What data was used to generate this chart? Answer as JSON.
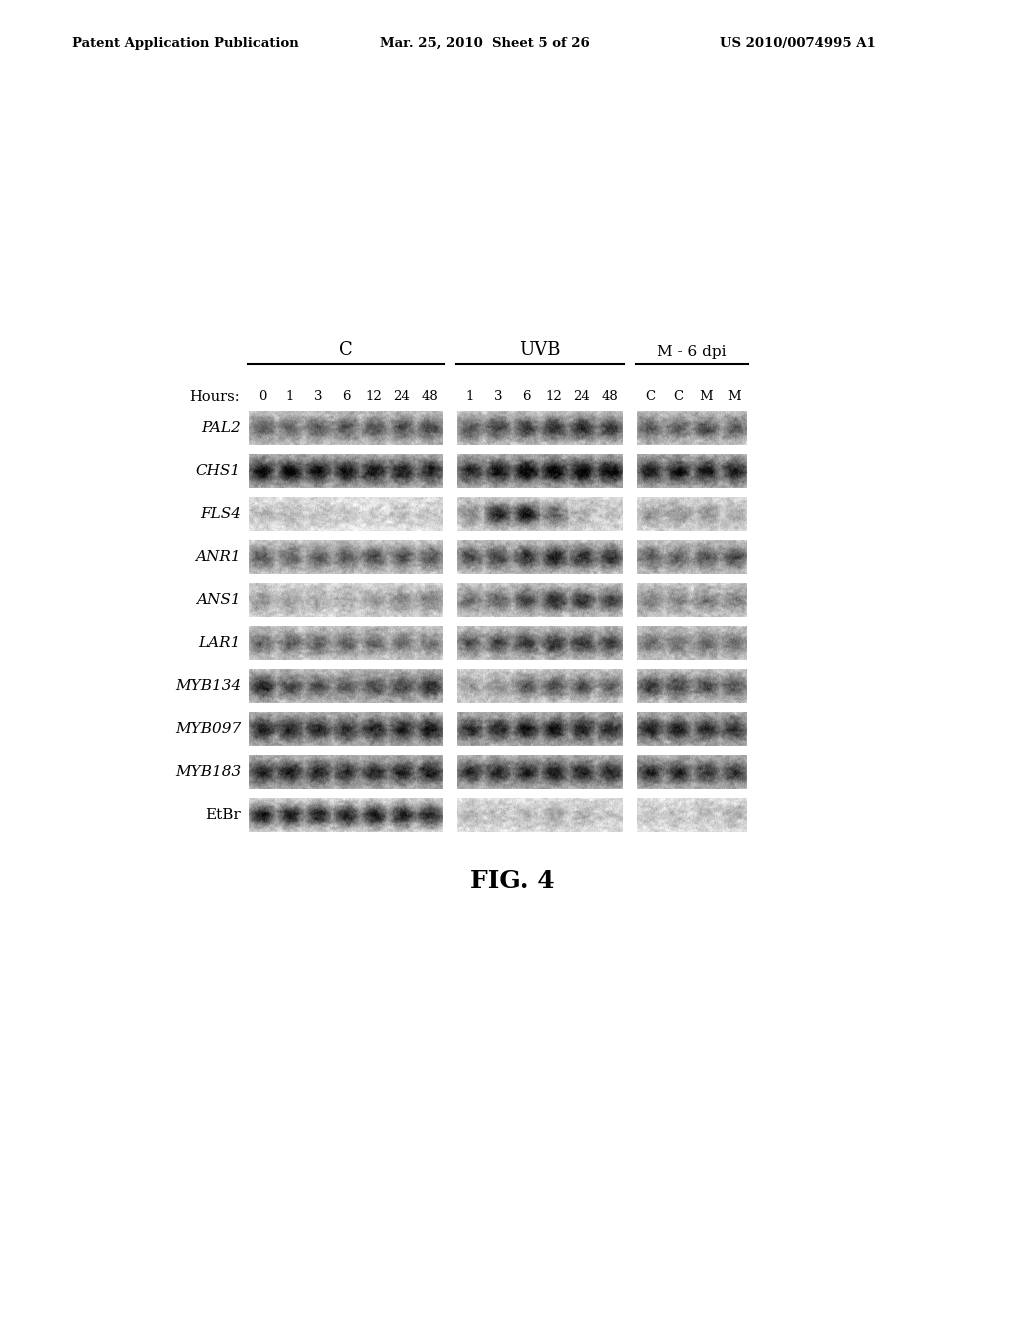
{
  "title_left": "Patent Application Publication",
  "title_center": "Mar. 25, 2010  Sheet 5 of 26",
  "title_right": "US 2010/0074995 A1",
  "fig_label": "FIG. 4",
  "group_labels": [
    "C",
    "UVB",
    "M - 6 dpi"
  ],
  "hours_label": "Hours:",
  "hours_C": [
    "0",
    "1",
    "3",
    "6",
    "12",
    "24",
    "48"
  ],
  "hours_UVB": [
    "1",
    "3",
    "6",
    "12",
    "24",
    "48"
  ],
  "hours_M": [
    "C",
    "C",
    "M",
    "M"
  ],
  "gene_labels": [
    "PAL2",
    "CHS1",
    "FLS4",
    "ANR1",
    "ANS1",
    "LAR1",
    "MYB134",
    "MYB097",
    "MYB183",
    "EtBr"
  ],
  "n_lanes_C": 7,
  "n_lanes_UVB": 6,
  "n_lanes_M": 4,
  "background_color": "#ffffff",
  "gene_data": {
    "PAL2": {
      "C": [
        0.5,
        0.45,
        0.48,
        0.52,
        0.55,
        0.58,
        0.6
      ],
      "UVB": [
        0.55,
        0.62,
        0.68,
        0.72,
        0.75,
        0.7
      ],
      "M": [
        0.52,
        0.5,
        0.55,
        0.52
      ],
      "bg_C": 0.78,
      "bg_UVB": 0.78,
      "bg_M": 0.78
    },
    "CHS1": {
      "C": [
        0.82,
        0.85,
        0.83,
        0.8,
        0.78,
        0.75,
        0.72
      ],
      "UVB": [
        0.7,
        0.78,
        0.88,
        0.92,
        0.9,
        0.88
      ],
      "M": [
        0.78,
        0.8,
        0.75,
        0.73
      ],
      "bg_C": 0.72,
      "bg_UVB": 0.72,
      "bg_M": 0.72
    },
    "FLS4": {
      "C": [
        0.22,
        0.2,
        0.18,
        0.1,
        0.08,
        0.12,
        0.15
      ],
      "UVB": [
        0.35,
        0.88,
        0.92,
        0.55,
        0.22,
        0.12
      ],
      "M": [
        0.3,
        0.35,
        0.28,
        0.22
      ],
      "bg_C": 0.88,
      "bg_UVB": 0.85,
      "bg_M": 0.85
    },
    "ANR1": {
      "C": [
        0.55,
        0.52,
        0.55,
        0.58,
        0.6,
        0.58,
        0.55
      ],
      "UVB": [
        0.58,
        0.62,
        0.72,
        0.78,
        0.75,
        0.7
      ],
      "M": [
        0.52,
        0.5,
        0.55,
        0.58
      ],
      "bg_C": 0.8,
      "bg_UVB": 0.78,
      "bg_M": 0.78
    },
    "ANS1": {
      "C": [
        0.28,
        0.25,
        0.22,
        0.2,
        0.25,
        0.38,
        0.42
      ],
      "UVB": [
        0.42,
        0.5,
        0.65,
        0.75,
        0.72,
        0.65
      ],
      "M": [
        0.38,
        0.35,
        0.4,
        0.38
      ],
      "bg_C": 0.83,
      "bg_UVB": 0.8,
      "bg_M": 0.8
    },
    "LAR1": {
      "C": [
        0.48,
        0.5,
        0.52,
        0.5,
        0.48,
        0.45,
        0.42
      ],
      "UVB": [
        0.52,
        0.58,
        0.68,
        0.72,
        0.7,
        0.65
      ],
      "M": [
        0.42,
        0.4,
        0.45,
        0.43
      ],
      "bg_C": 0.8,
      "bg_UVB": 0.78,
      "bg_M": 0.78
    },
    "MYB134": {
      "C": [
        0.72,
        0.55,
        0.52,
        0.5,
        0.55,
        0.6,
        0.68
      ],
      "UVB": [
        0.25,
        0.3,
        0.55,
        0.65,
        0.6,
        0.55
      ],
      "M": [
        0.65,
        0.62,
        0.6,
        0.58
      ],
      "bg_C": 0.75,
      "bg_UVB": 0.82,
      "bg_M": 0.78
    },
    "MYB097": {
      "C": [
        0.72,
        0.75,
        0.7,
        0.68,
        0.72,
        0.75,
        0.78
      ],
      "UVB": [
        0.68,
        0.7,
        0.75,
        0.78,
        0.72,
        0.7
      ],
      "M": [
        0.72,
        0.7,
        0.68,
        0.65
      ],
      "bg_C": 0.72,
      "bg_UVB": 0.72,
      "bg_M": 0.72
    },
    "MYB183": {
      "C": [
        0.7,
        0.72,
        0.68,
        0.65,
        0.7,
        0.72,
        0.75
      ],
      "UVB": [
        0.65,
        0.68,
        0.72,
        0.75,
        0.7,
        0.68
      ],
      "M": [
        0.68,
        0.65,
        0.62,
        0.6
      ],
      "bg_C": 0.72,
      "bg_UVB": 0.72,
      "bg_M": 0.72
    },
    "EtBr": {
      "C": [
        0.92,
        0.93,
        0.92,
        0.91,
        0.92,
        0.93,
        0.94
      ],
      "UVB": [
        0.2,
        0.18,
        0.22,
        0.28,
        0.22,
        0.18
      ],
      "M": [
        0.15,
        0.12,
        0.18,
        0.22
      ],
      "bg_C": 0.88,
      "bg_UVB": 0.88,
      "bg_M": 0.88
    }
  }
}
